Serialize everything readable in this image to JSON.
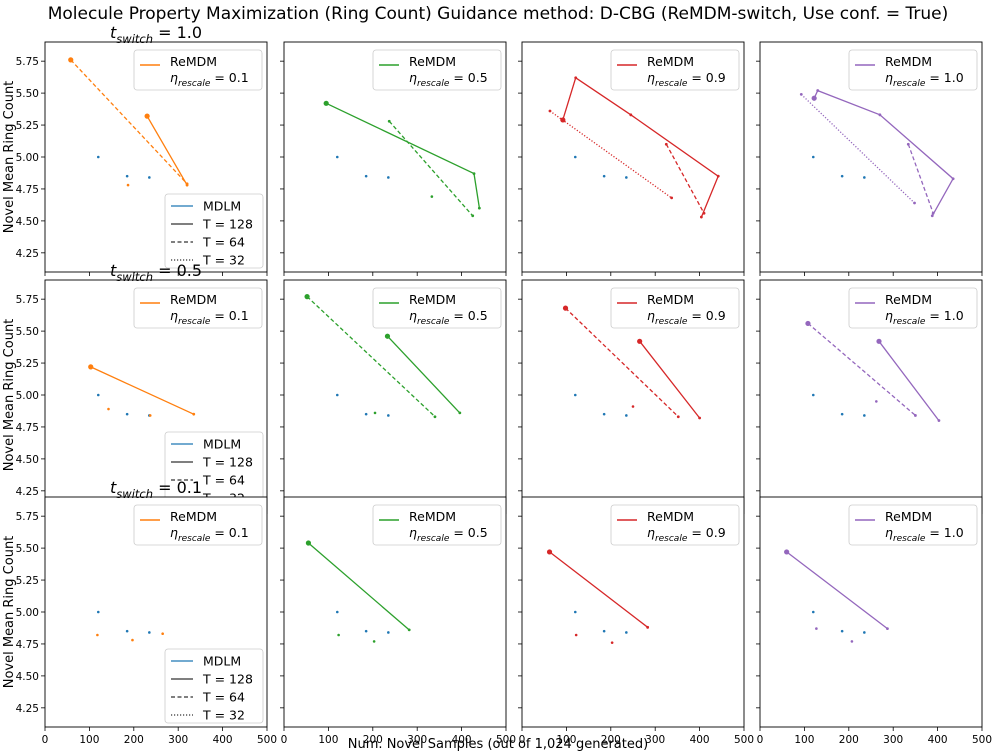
{
  "figure": {
    "title": "Molecule Property Maximization (Ring Count) Guidance method: D-CBG (ReMDM-switch, Use conf. = True)",
    "xlabel": "Num. Novel Samples (out of 1,024 generated)",
    "ylabel": "Novel Mean Ring Count"
  },
  "colors": {
    "mdlm": "#1f77b4",
    "eta_0.1": "#ff7f0e",
    "eta_0.5": "#2ca02c",
    "eta_0.9": "#d62728",
    "eta_1.0": "#9467bd",
    "axis": "#000000",
    "legend_text": "#000000",
    "legend_line": "#333333"
  },
  "legend_main": {
    "remdm": "ReMDM",
    "eta_label": "η_rescale = ",
    "eta_values": [
      "0.1",
      "0.5",
      "0.9",
      "1.0"
    ]
  },
  "legend_lower": {
    "mdlm": "MDLM",
    "t128": "T = 128",
    "t64": "T = 64",
    "t32": "T = 32"
  },
  "row_labels": [
    "1.0",
    "0.5",
    "0.1"
  ],
  "row_label_prefix": "t_switch = ",
  "chart_data": {
    "type": "scatter",
    "title": "Molecule Property Maximization (Ring Count) Guidance method: D-CBG (ReMDM-switch, Use conf. = True)",
    "xlabel": "Num. Novel Samples (out of 1,024 generated)",
    "ylabel": "Novel Mean Ring Count",
    "xlim": [
      0,
      500
    ],
    "ylim": [
      4.1,
      5.9
    ],
    "xticks": [
      0,
      100,
      200,
      300,
      400,
      500
    ],
    "yticks": [
      4.25,
      4.5,
      4.75,
      5.0,
      5.25,
      5.5,
      5.75
    ],
    "xtick_labels": [
      "0",
      "100",
      "200",
      "300",
      "400",
      "500"
    ],
    "ytick_labels": [
      "4.25",
      "4.50",
      "4.75",
      "5.00",
      "5.25",
      "5.50",
      "5.75"
    ],
    "rows": [
      "t_switch = 1.0",
      "t_switch = 0.5",
      "t_switch = 0.1"
    ],
    "columns": [
      "η_rescale = 0.1",
      "η_rescale = 0.5",
      "η_rescale = 0.9",
      "η_rescale = 1.0"
    ],
    "mdlm": [
      {
        "T": 128,
        "x": 120,
        "y": 5.0
      },
      {
        "T": 64,
        "x": 185,
        "y": 4.85
      },
      {
        "T": 32,
        "x": 235,
        "y": 4.84
      }
    ],
    "panels": [
      [
        {
          "eta": "0.1",
          "extra": [
            {
              "x": 187,
              "y": 4.78
            }
          ],
          "series": [
            {
              "T": 128,
              "points": [
                {
                  "x": 230,
                  "y": 5.32,
                  "big": true
                },
                {
                  "x": 320,
                  "y": 4.78
                }
              ]
            },
            {
              "T": 64,
              "points": [
                {
                  "x": 58,
                  "y": 5.76,
                  "big": true
                },
                {
                  "x": 320,
                  "y": 4.79
                }
              ]
            }
          ]
        },
        {
          "eta": "0.5",
          "extra": [
            {
              "x": 333,
              "y": 4.69
            }
          ],
          "series": [
            {
              "T": 128,
              "points": [
                {
                  "x": 95,
                  "y": 5.42,
                  "big": true
                },
                {
                  "x": 428,
                  "y": 4.87
                },
                {
                  "x": 440,
                  "y": 4.6
                }
              ]
            },
            {
              "T": 64,
              "points": [
                {
                  "x": 237,
                  "y": 5.28
                },
                {
                  "x": 425,
                  "y": 4.54
                }
              ]
            }
          ]
        },
        {
          "eta": "0.9",
          "extra": [],
          "series": [
            {
              "T": 128,
              "points": [
                {
                  "x": 92,
                  "y": 5.29,
                  "big": true
                },
                {
                  "x": 121,
                  "y": 5.62
                },
                {
                  "x": 245,
                  "y": 5.33
                },
                {
                  "x": 442,
                  "y": 4.85
                },
                {
                  "x": 404,
                  "y": 4.53
                }
              ]
            },
            {
              "T": 64,
              "points": [
                {
                  "x": 325,
                  "y": 5.1
                },
                {
                  "x": 410,
                  "y": 4.56
                }
              ]
            },
            {
              "T": 32,
              "points": [
                {
                  "x": 63,
                  "y": 5.36
                },
                {
                  "x": 337,
                  "y": 4.68
                }
              ]
            }
          ]
        },
        {
          "eta": "1.0",
          "extra": [],
          "series": [
            {
              "T": 128,
              "points": [
                {
                  "x": 122,
                  "y": 5.46,
                  "big": true
                },
                {
                  "x": 130,
                  "y": 5.52
                },
                {
                  "x": 270,
                  "y": 5.33
                },
                {
                  "x": 435,
                  "y": 4.83
                },
                {
                  "x": 388,
                  "y": 4.54
                }
              ]
            },
            {
              "T": 64,
              "points": [
                {
                  "x": 334,
                  "y": 5.1
                },
                {
                  "x": 390,
                  "y": 4.56
                }
              ]
            },
            {
              "T": 32,
              "points": [
                {
                  "x": 93,
                  "y": 5.49
                },
                {
                  "x": 348,
                  "y": 4.64
                }
              ]
            }
          ]
        }
      ],
      [
        {
          "eta": "0.1",
          "extra": [
            {
              "x": 143,
              "y": 4.89
            },
            {
              "x": 237,
              "y": 4.84
            }
          ],
          "series": [
            {
              "T": 128,
              "points": [
                {
                  "x": 103,
                  "y": 5.22,
                  "big": true
                },
                {
                  "x": 335,
                  "y": 4.85
                }
              ]
            }
          ]
        },
        {
          "eta": "0.5",
          "extra": [
            {
              "x": 205,
              "y": 4.86
            }
          ],
          "series": [
            {
              "T": 128,
              "points": [
                {
                  "x": 233,
                  "y": 5.46,
                  "big": true
                },
                {
                  "x": 396,
                  "y": 4.86
                }
              ]
            },
            {
              "T": 64,
              "points": [
                {
                  "x": 52,
                  "y": 5.77,
                  "big": true
                },
                {
                  "x": 340,
                  "y": 4.83
                }
              ]
            }
          ]
        },
        {
          "eta": "0.9",
          "extra": [
            {
              "x": 250,
              "y": 4.91
            }
          ],
          "series": [
            {
              "T": 128,
              "points": [
                {
                  "x": 265,
                  "y": 5.42,
                  "big": true
                },
                {
                  "x": 400,
                  "y": 4.82
                }
              ]
            },
            {
              "T": 64,
              "points": [
                {
                  "x": 98,
                  "y": 5.68,
                  "big": true
                },
                {
                  "x": 352,
                  "y": 4.83
                }
              ]
            }
          ]
        },
        {
          "eta": "1.0",
          "extra": [
            {
              "x": 262,
              "y": 4.95
            }
          ],
          "series": [
            {
              "T": 128,
              "points": [
                {
                  "x": 268,
                  "y": 5.42,
                  "big": true
                },
                {
                  "x": 403,
                  "y": 4.8
                }
              ]
            },
            {
              "T": 64,
              "points": [
                {
                  "x": 108,
                  "y": 5.56,
                  "big": true
                },
                {
                  "x": 350,
                  "y": 4.84
                }
              ]
            }
          ]
        }
      ],
      [
        {
          "eta": "0.1",
          "extra": [
            {
              "x": 118,
              "y": 4.82
            },
            {
              "x": 197,
              "y": 4.78
            },
            {
              "x": 265,
              "y": 4.83
            }
          ],
          "series": []
        },
        {
          "eta": "0.5",
          "extra": [
            {
              "x": 123,
              "y": 4.82
            },
            {
              "x": 203,
              "y": 4.77
            }
          ],
          "series": [
            {
              "T": 128,
              "points": [
                {
                  "x": 55,
                  "y": 5.54,
                  "big": true
                },
                {
                  "x": 282,
                  "y": 4.86
                }
              ]
            }
          ]
        },
        {
          "eta": "0.9",
          "extra": [
            {
              "x": 122,
              "y": 4.82
            },
            {
              "x": 203,
              "y": 4.76
            }
          ],
          "series": [
            {
              "T": 128,
              "points": [
                {
                  "x": 62,
                  "y": 5.47,
                  "big": true
                },
                {
                  "x": 283,
                  "y": 4.88
                }
              ]
            }
          ]
        },
        {
          "eta": "1.0",
          "extra": [
            {
              "x": 127,
              "y": 4.87
            },
            {
              "x": 207,
              "y": 4.77
            }
          ],
          "series": [
            {
              "T": 128,
              "points": [
                {
                  "x": 60,
                  "y": 5.47,
                  "big": true
                },
                {
                  "x": 287,
                  "y": 4.87
                }
              ]
            }
          ]
        }
      ]
    ]
  }
}
